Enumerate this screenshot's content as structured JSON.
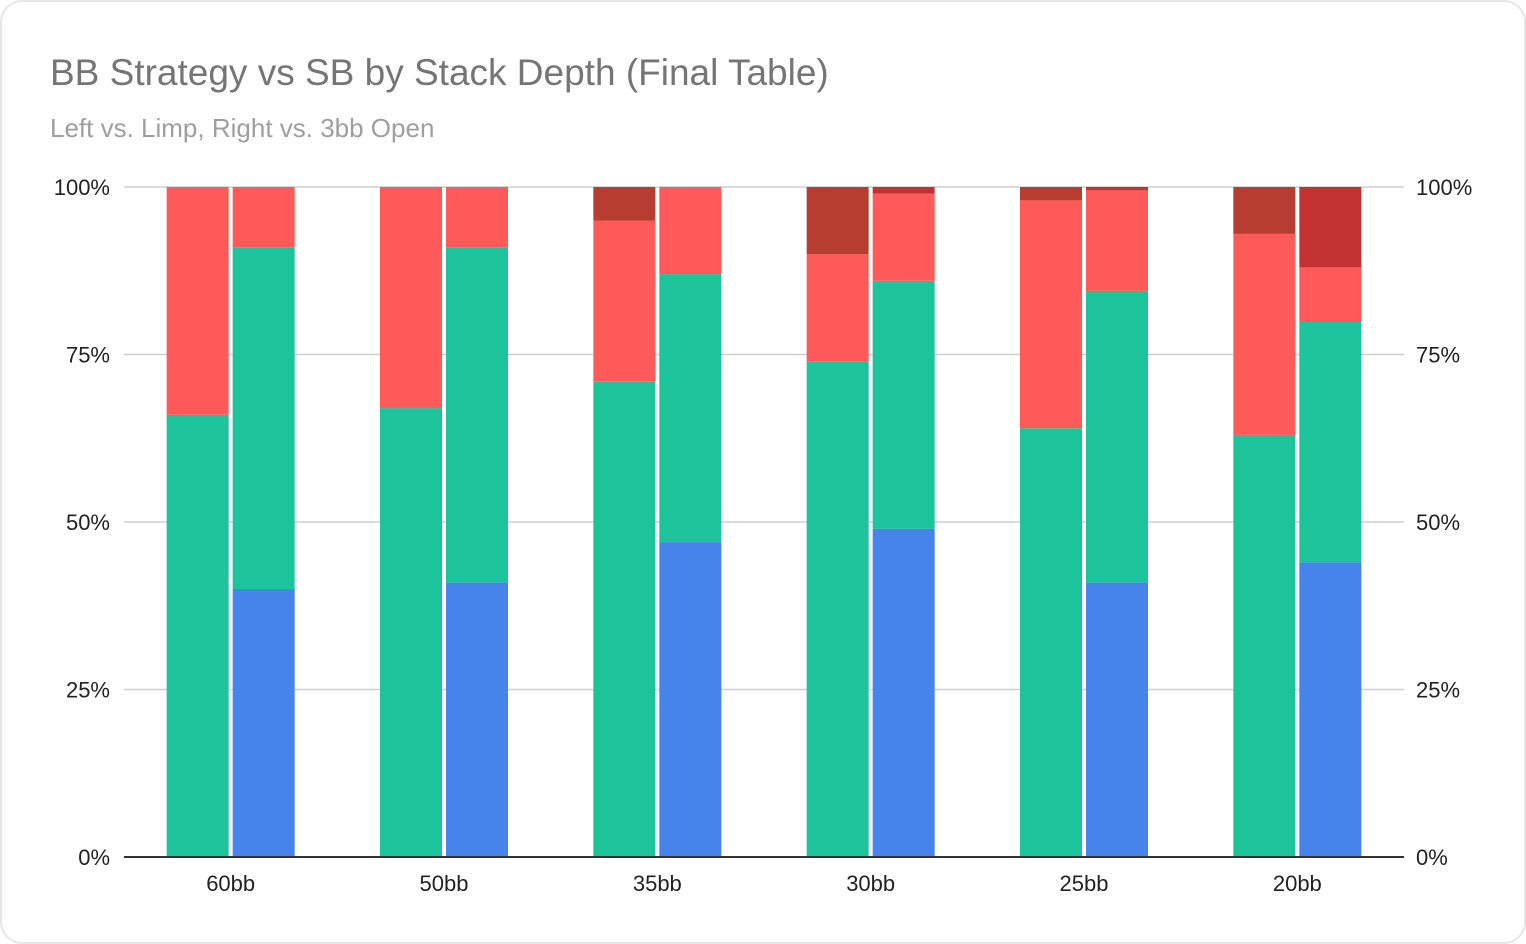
{
  "chart_data": {
    "type": "bar",
    "stacked": true,
    "title": "BB Strategy vs SB by Stack Depth (Final Table)",
    "subtitle": "Left vs. Limp, Right vs. 3bb Open",
    "categories": [
      "60bb",
      "50bb",
      "35bb",
      "30bb",
      "25bb",
      "20bb"
    ],
    "ylim": [
      0,
      100
    ],
    "y_ticks": [
      "0%",
      "25%",
      "50%",
      "75%",
      "100%"
    ],
    "secondary_y_ticks": [
      "0%",
      "25%",
      "50%",
      "75%",
      "100%"
    ],
    "grid": true,
    "legend": "none",
    "groups": [
      {
        "side": "left",
        "series": [
          {
            "color": "#1dc39a",
            "values": [
              66,
              67,
              71,
              74,
              64,
              63
            ]
          },
          {
            "color": "#ff5a5a",
            "values": [
              34,
              33,
              24,
              16,
              34,
              30
            ]
          },
          {
            "color": "#b73d31",
            "values": [
              0,
              0,
              5,
              10,
              2,
              7
            ]
          }
        ]
      },
      {
        "side": "right",
        "series": [
          {
            "color": "#4784ea",
            "values": [
              40,
              41,
              47,
              49,
              41,
              44
            ]
          },
          {
            "color": "#1dc39a",
            "values": [
              51,
              50,
              40,
              37,
              43.5,
              36
            ]
          },
          {
            "color": "#ff5a5a",
            "values": [
              9,
              9,
              13,
              13,
              15,
              8
            ]
          },
          {
            "color": "#c33232",
            "values": [
              0,
              0,
              0,
              1,
              0.5,
              12
            ]
          }
        ]
      }
    ]
  }
}
